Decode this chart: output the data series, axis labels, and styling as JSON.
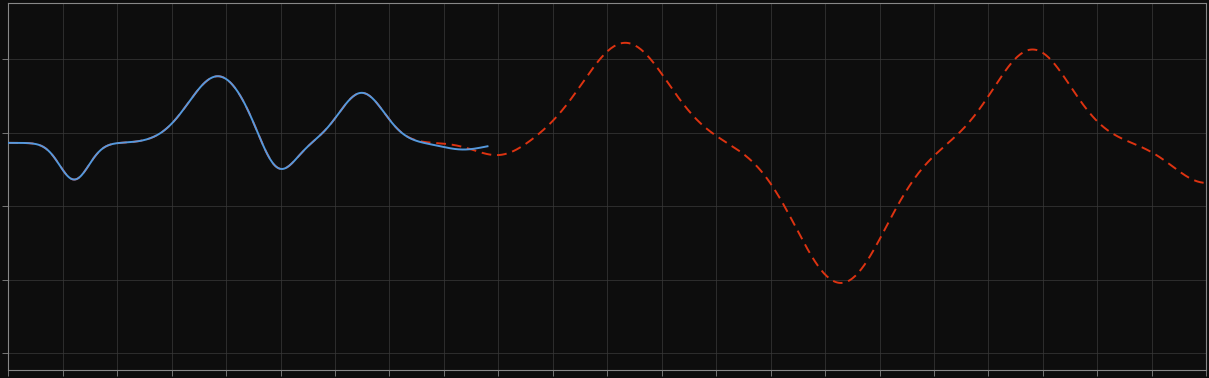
{
  "background_color": "#0d0d0d",
  "axes_background": "#0d0d0d",
  "grid_color": "#3a3a3a",
  "blue_line_color": "#5599dd",
  "red_line_color": "#dd3311",
  "fig_width": 12.09,
  "fig_height": 3.78,
  "dpi": 100,
  "spine_color": "#888888",
  "tick_color": "#888888"
}
